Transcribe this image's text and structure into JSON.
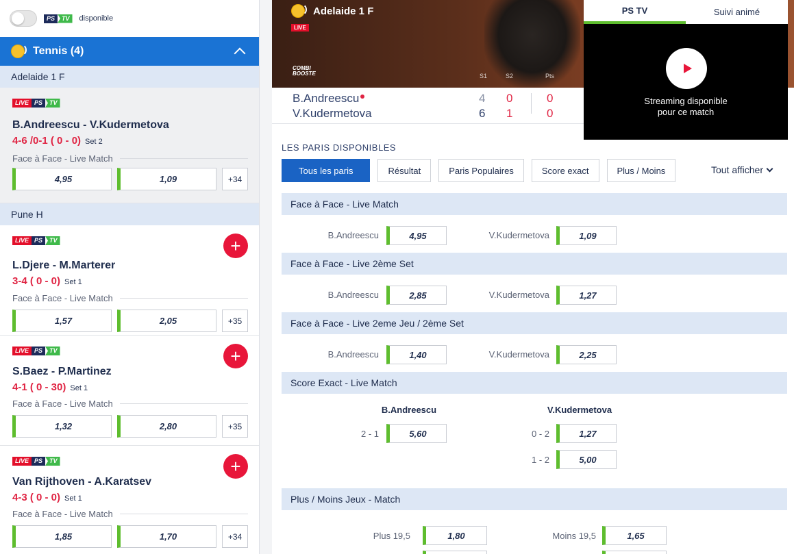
{
  "topbar": {
    "ps": "PS",
    "tv": "TV",
    "available": "disponible"
  },
  "sport": {
    "name": "Tennis (4)"
  },
  "badges": {
    "live": "LIVE",
    "ps": "PS",
    "tv": "TV"
  },
  "leagues": [
    "Adelaide 1 F",
    "Pune H"
  ],
  "matches": [
    {
      "name": "B.Andreescu - V.Kudermetova",
      "score": "4-6 /0-1 ( 0 - 0)",
      "set": "Set 2",
      "market": "Face à Face - Live Match",
      "odds": [
        "4,95",
        "1,09"
      ],
      "more": "+34"
    },
    {
      "name": "L.Djere - M.Marterer",
      "score": "3-4 ( 0 - 0)",
      "set": "Set 1",
      "market": "Face à Face - Live Match",
      "odds": [
        "1,57",
        "2,05"
      ],
      "more": "+35"
    },
    {
      "name": "S.Baez - P.Martinez",
      "score": "4-1 ( 0 - 30)",
      "set": "Set 1",
      "market": "Face à Face - Live Match",
      "odds": [
        "1,32",
        "2,80"
      ],
      "more": "+35"
    },
    {
      "name": "Van Rijthoven - A.Karatsev",
      "score": "4-3 ( 0 - 0)",
      "set": "Set 1",
      "market": "Face à Face - Live Match",
      "odds": [
        "1,85",
        "1,70"
      ],
      "more": "+34"
    }
  ],
  "hero": {
    "title": "Adelaide 1 F",
    "live": "LIVE",
    "combi1": "COMBI",
    "combi2": "BOOSTE",
    "s1": "S1",
    "s2": "S2",
    "pts": "Pts"
  },
  "scoreboard": {
    "p1": "B.Andreescu",
    "p2": "V.Kudermetova",
    "p1s1": "4",
    "p1s2": "0",
    "p1pts": "0",
    "p2s1": "6",
    "p2s2": "1",
    "p2pts": "0"
  },
  "video": {
    "tab1": "PS TV",
    "tab2": "Suivi animé",
    "line1": "Streaming disponible",
    "line2": "pour ce match"
  },
  "bets": {
    "title": "LES PARIS DISPONIBLES",
    "tabs": [
      "Tous les paris",
      "Résultat",
      "Paris Populaires",
      "Score exact",
      "Plus / Moins"
    ],
    "showall": "Tout afficher",
    "markets": [
      {
        "title": "Face à Face - Live Match",
        "p1": "B.Andreescu",
        "o1": "4,95",
        "p2": "V.Kudermetova",
        "o2": "1,09"
      },
      {
        "title": "Face à Face - Live 2ème Set",
        "p1": "B.Andreescu",
        "o1": "2,85",
        "p2": "V.Kudermetova",
        "o2": "1,27"
      },
      {
        "title": "Face à Face - Live 2eme Jeu / 2ème Set",
        "p1": "B.Andreescu",
        "o1": "1,40",
        "p2": "V.Kudermetova",
        "o2": "2,25"
      }
    ],
    "exact": {
      "title": "Score Exact - Live Match",
      "h1": "B.Andreescu",
      "h2": "V.Kudermetova",
      "l1": "2 - 1",
      "o1": "5,60",
      "l2": "0 - 2",
      "o2": "1,27",
      "l3": "1 - 2",
      "o3": "5,00"
    },
    "plusmoins": {
      "title": "Plus / Moins Jeux - Match",
      "l1": "Plus 19,5",
      "o1": "1,80",
      "l2": "Moins 19,5",
      "o2": "1,65"
    }
  },
  "colors": {
    "accent": "#1a73d4",
    "odds_border": "#5ebd2e",
    "live_red": "#e30f2a",
    "score_red": "#e02443"
  }
}
